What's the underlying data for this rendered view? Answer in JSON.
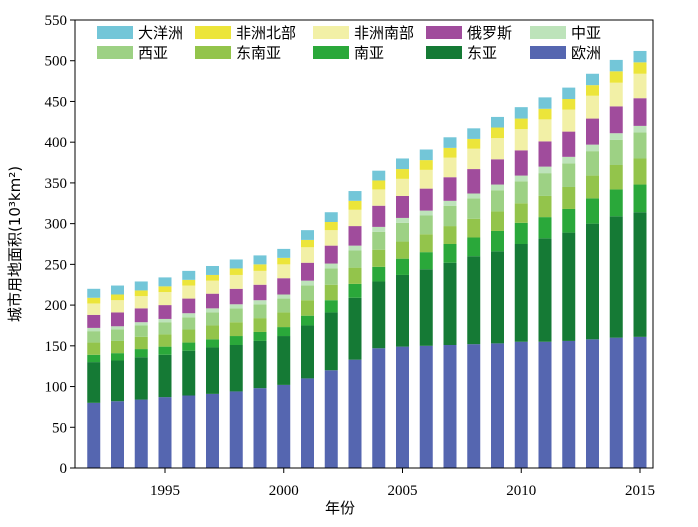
{
  "chart_data": {
    "type": "bar",
    "stacked": true,
    "xlabel": "年份",
    "ylabel": "城市用地面积(10³km²)",
    "ylim": [
      0,
      550
    ],
    "yticks": [
      0,
      50,
      100,
      150,
      200,
      250,
      300,
      350,
      400,
      450,
      500,
      550
    ],
    "xticks": [
      1995,
      2000,
      2005,
      2010,
      2015
    ],
    "years": [
      1992,
      1993,
      1994,
      1995,
      1996,
      1997,
      1998,
      1999,
      2000,
      2001,
      2002,
      2003,
      2004,
      2005,
      2006,
      2007,
      2008,
      2009,
      2010,
      2011,
      2012,
      2013,
      2014,
      2015
    ],
    "grid": false,
    "legend_position": "top-left (inside plot)",
    "legend_order": [
      "大洋洲",
      "非洲北部",
      "非洲南部",
      "俄罗斯",
      "中亚",
      "西亚",
      "东南亚",
      "南亚",
      "东亚",
      "欧洲"
    ],
    "series": [
      {
        "name": "欧洲",
        "color": "#5566b0",
        "values": [
          80,
          82,
          84,
          87,
          89,
          91,
          94,
          98,
          102,
          110,
          120,
          133,
          147,
          149,
          150,
          151,
          152,
          153,
          155,
          155,
          156,
          158,
          160,
          161
        ]
      },
      {
        "name": "东亚",
        "color": "#157a35",
        "values": [
          50,
          50,
          52,
          52,
          55,
          57,
          57,
          58,
          60,
          65,
          71,
          76,
          82,
          88,
          94,
          101,
          108,
          113,
          120,
          127,
          133,
          142,
          149,
          153
        ]
      },
      {
        "name": "南亚",
        "color": "#2aa83a",
        "values": [
          9,
          9,
          10,
          10,
          10,
          10,
          11,
          11,
          11,
          12,
          15,
          17,
          18,
          20,
          21,
          23,
          23,
          25,
          26,
          26,
          29,
          31,
          33,
          34
        ]
      },
      {
        "name": "东南亚",
        "color": "#93c44b",
        "values": [
          15,
          15,
          15,
          15,
          16,
          17,
          17,
          17,
          18,
          19,
          19,
          20,
          21,
          21,
          22,
          22,
          23,
          24,
          24,
          26,
          27,
          28,
          30,
          32
        ]
      },
      {
        "name": "西亚",
        "color": "#9dd184",
        "values": [
          14,
          14,
          14,
          15,
          15,
          16,
          17,
          17,
          17,
          18,
          20,
          21,
          22,
          23,
          23,
          25,
          25,
          26,
          27,
          28,
          29,
          30,
          31,
          32
        ]
      },
      {
        "name": "中亚",
        "color": "#bde3ba",
        "values": [
          4,
          4,
          4,
          4,
          5,
          5,
          5,
          5,
          5,
          6,
          6,
          6,
          6,
          6,
          6,
          6,
          6,
          7,
          7,
          8,
          8,
          8,
          8,
          8
        ]
      },
      {
        "name": "俄罗斯",
        "color": "#a04c9c",
        "values": [
          16,
          17,
          17,
          17,
          18,
          18,
          19,
          19,
          20,
          22,
          22,
          24,
          26,
          27,
          27,
          29,
          30,
          31,
          31,
          31,
          31,
          32,
          33,
          34
        ]
      },
      {
        "name": "非洲南部",
        "color": "#f2f0a6",
        "values": [
          14,
          15,
          15,
          16,
          16,
          16,
          17,
          17,
          17,
          19,
          19,
          20,
          20,
          21,
          23,
          24,
          25,
          26,
          26,
          27,
          27,
          28,
          29,
          30
        ]
      },
      {
        "name": "非洲北部",
        "color": "#ece53a",
        "values": [
          7,
          7,
          7,
          7,
          7,
          7,
          8,
          8,
          8,
          9,
          10,
          11,
          11,
          12,
          12,
          12,
          12,
          13,
          13,
          13,
          13,
          13,
          14,
          14
        ]
      },
      {
        "name": "大洋洲",
        "color": "#73c6d8",
        "values": [
          11,
          11,
          11,
          11,
          11,
          11,
          11,
          11,
          11,
          12,
          12,
          12,
          12,
          13,
          13,
          13,
          13,
          13,
          14,
          14,
          14,
          14,
          14,
          14
        ]
      }
    ]
  }
}
